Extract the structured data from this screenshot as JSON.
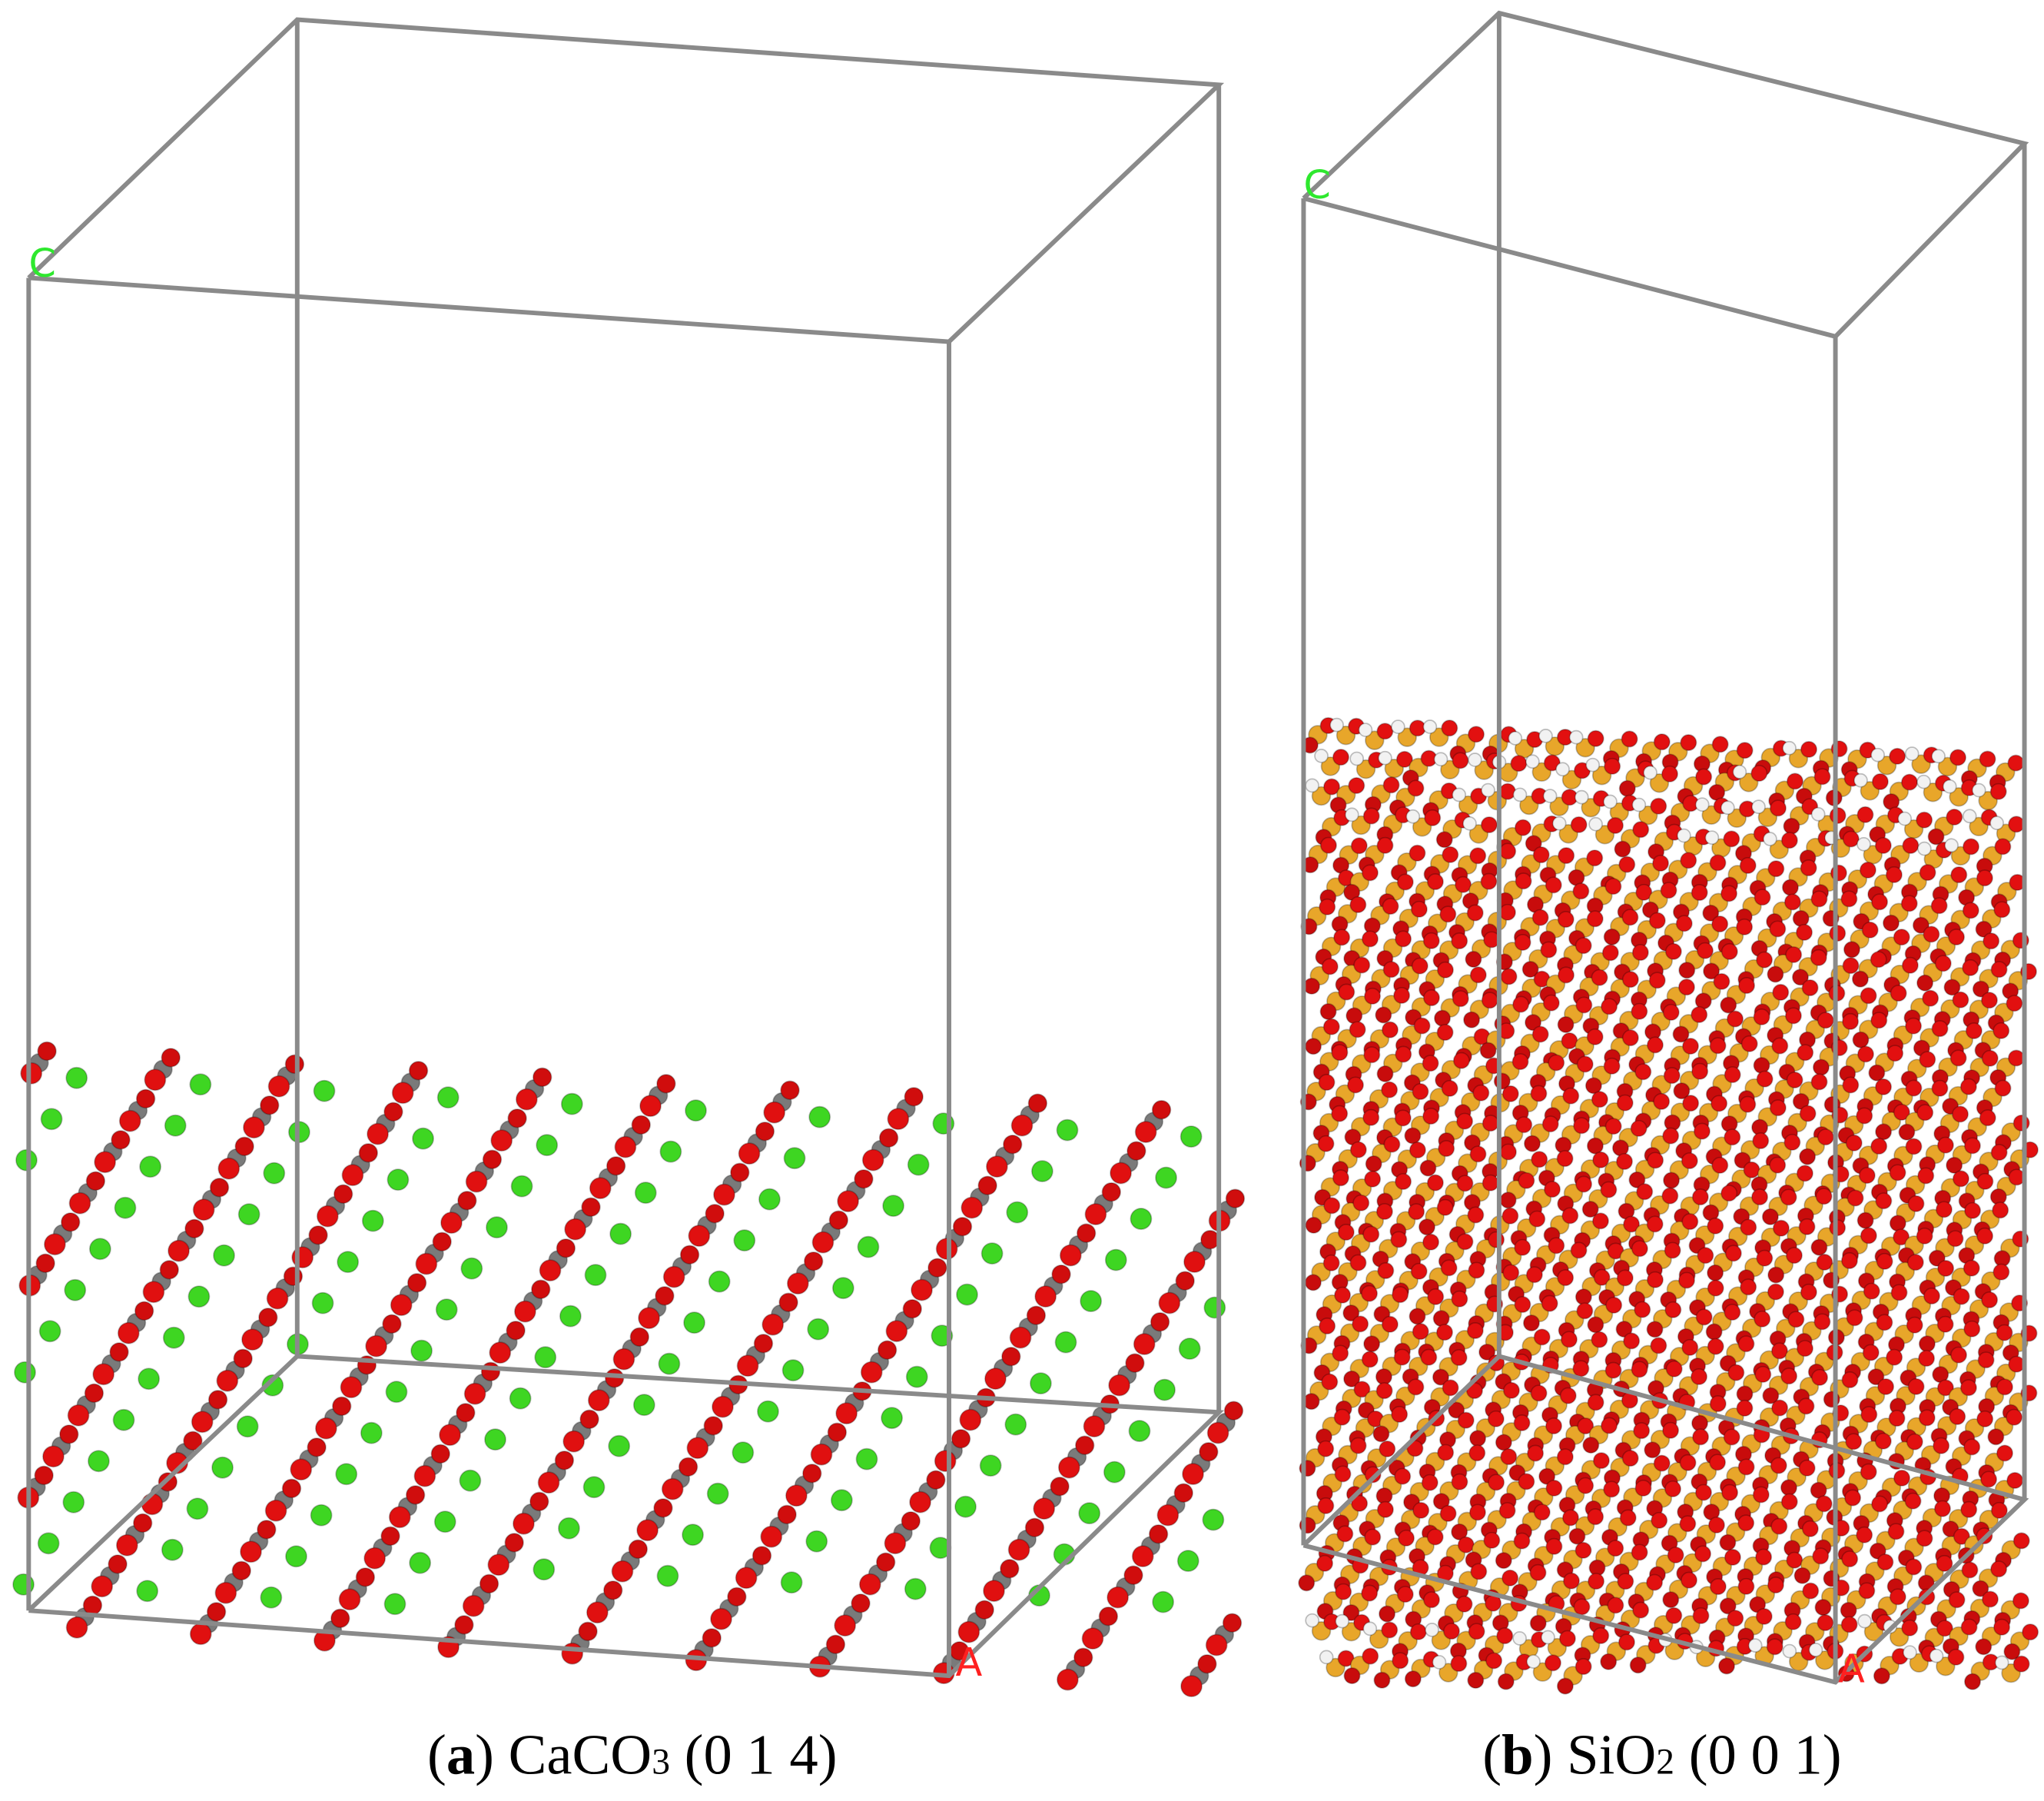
{
  "panels": [
    {
      "axis_c": "C",
      "axis_a": "A",
      "caption": {
        "open": "(",
        "label": "a",
        "close": ")",
        "formula": " CaCO",
        "subscript": "3",
        "miller": " (0 1 4)"
      }
    },
    {
      "axis_c": "C",
      "axis_a": "A",
      "caption": {
        "open": "(",
        "label": "b",
        "close": ")",
        "formula": " SiO",
        "subscript": "2",
        "miller": " (0 0 1)"
      }
    }
  ]
}
